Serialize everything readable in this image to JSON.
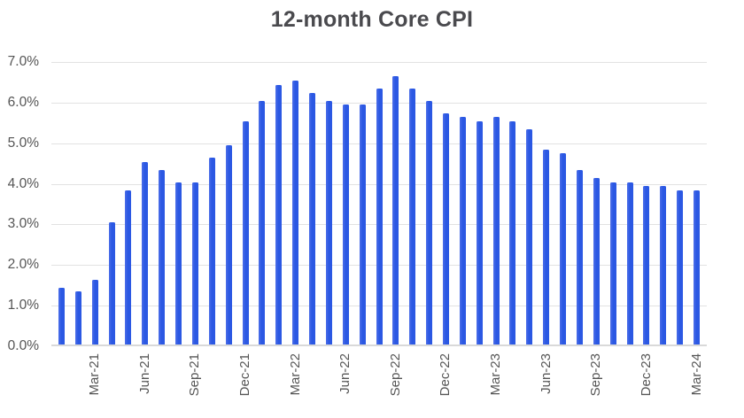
{
  "title": "12-month Core CPI",
  "colors": {
    "bar": "#2b58e3",
    "bar_edge_highlight": "#4d6fe9",
    "gridline": "#e2e2e2",
    "axis_line": "#d9d9d9",
    "title_text": "#4a4a4e",
    "tick_text": "#555555",
    "background": "#ffffff"
  },
  "chart_data": {
    "type": "bar",
    "title": "12-month Core CPI",
    "xlabel": "",
    "ylabel": "",
    "ylim": [
      0,
      7
    ],
    "y_unit": "%",
    "grid": "horizontal",
    "legend": "none",
    "x_label_rotation_deg": 90,
    "x": [
      "Jan-21",
      "Feb-21",
      "Mar-21",
      "Apr-21",
      "May-21",
      "Jun-21",
      "Jul-21",
      "Aug-21",
      "Sep-21",
      "Oct-21",
      "Nov-21",
      "Dec-21",
      "Jan-22",
      "Feb-22",
      "Mar-22",
      "Apr-22",
      "May-22",
      "Jun-22",
      "Jul-22",
      "Aug-22",
      "Sep-22",
      "Oct-22",
      "Nov-22",
      "Dec-22",
      "Jan-23",
      "Feb-23",
      "Mar-23",
      "Apr-23",
      "May-23",
      "Jun-23",
      "Jul-23",
      "Aug-23",
      "Sep-23",
      "Oct-23",
      "Nov-23",
      "Dec-23",
      "Jan-24",
      "Feb-24",
      "Mar-24"
    ],
    "values": [
      1.4,
      1.3,
      1.6,
      3.0,
      3.8,
      4.5,
      4.3,
      4.0,
      4.0,
      4.6,
      4.9,
      5.5,
      6.0,
      6.4,
      6.5,
      6.2,
      6.0,
      5.9,
      5.9,
      6.3,
      6.6,
      6.3,
      6.0,
      5.7,
      5.6,
      5.5,
      5.6,
      5.5,
      5.3,
      4.8,
      4.7,
      4.3,
      4.1,
      4.0,
      4.0,
      3.9,
      3.9,
      3.8,
      3.8
    ],
    "y_ticks": [
      "7.0%",
      "6.0%",
      "5.0%",
      "4.0%",
      "3.0%",
      "2.0%",
      "1.0%",
      "0.0%"
    ],
    "x_ticks": [
      {
        "index": 2,
        "label": "Mar-21"
      },
      {
        "index": 5,
        "label": "Jun-21"
      },
      {
        "index": 8,
        "label": "Sep-21"
      },
      {
        "index": 11,
        "label": "Dec-21"
      },
      {
        "index": 14,
        "label": "Mar-22"
      },
      {
        "index": 17,
        "label": "Jun-22"
      },
      {
        "index": 20,
        "label": "Sep-22"
      },
      {
        "index": 23,
        "label": "Dec-22"
      },
      {
        "index": 26,
        "label": "Mar-23"
      },
      {
        "index": 29,
        "label": "Jun-23"
      },
      {
        "index": 32,
        "label": "Sep-23"
      },
      {
        "index": 35,
        "label": "Dec-23"
      },
      {
        "index": 38,
        "label": "Mar-24"
      }
    ]
  }
}
